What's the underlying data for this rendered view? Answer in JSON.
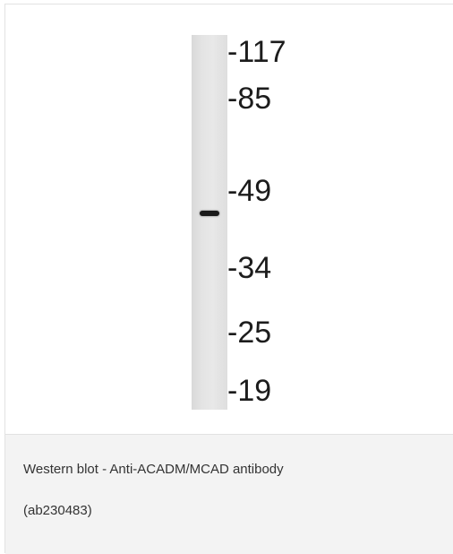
{
  "blot": {
    "markers": [
      {
        "label": "-117"
      },
      {
        "label": "-85"
      },
      {
        "label": "-49"
      },
      {
        "label": "-34"
      },
      {
        "label": "-25"
      },
      {
        "label": "-19"
      }
    ]
  },
  "caption": {
    "line1": "Western blot - Anti-ACADM/MCAD antibody",
    "line2": "(ab230483)"
  },
  "colors": {
    "caption_background": "#f3f3f3",
    "border": "#e2e2e2",
    "text": "#333333"
  }
}
